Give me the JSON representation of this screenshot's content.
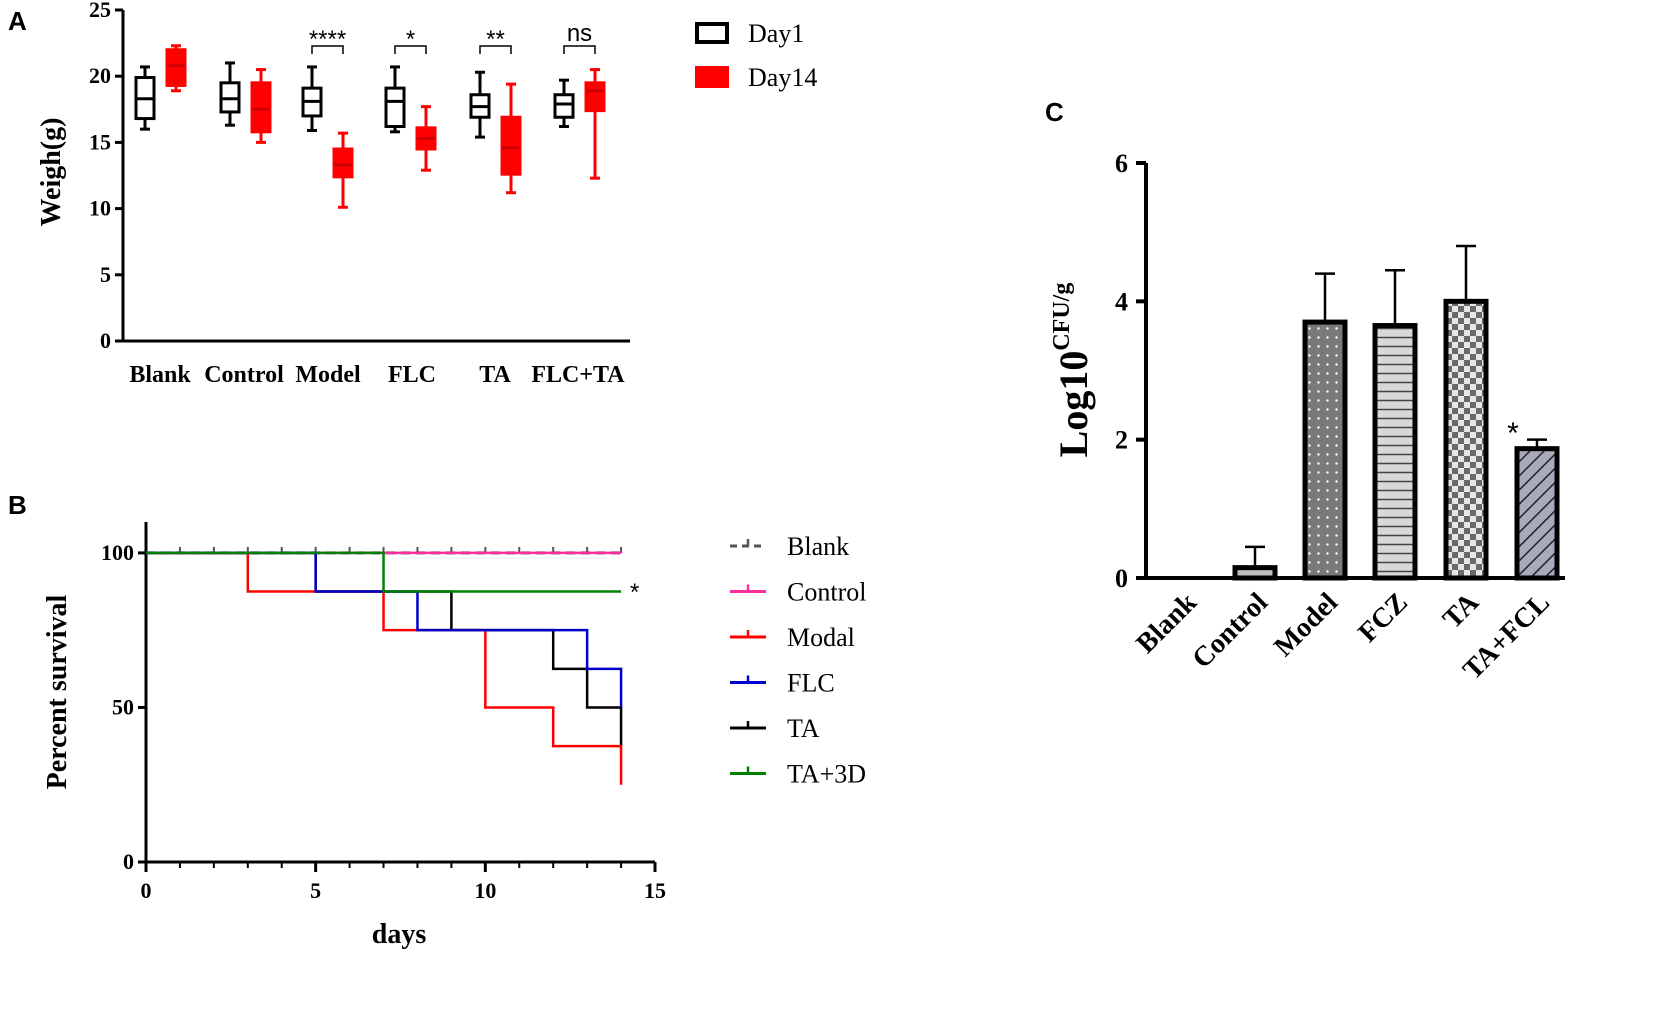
{
  "chart_data": [
    {
      "panel": "A",
      "type": "box",
      "ylabel": "Weigh(g)",
      "ylim": [
        0,
        25
      ],
      "yticks": [
        0,
        5,
        10,
        15,
        20,
        25
      ],
      "categories": [
        "Blank",
        "Control",
        "Model",
        "FLC",
        "TA",
        "FLC+TA"
      ],
      "legend": [
        {
          "name": "Day1",
          "color": "#000000",
          "style": "open"
        },
        {
          "name": "Day14",
          "color": "#ff0000",
          "style": "filled"
        }
      ],
      "series": [
        {
          "name": "Day1",
          "boxes": [
            {
              "min": 16.0,
              "q1": 16.8,
              "median": 18.3,
              "q3": 19.9,
              "max": 20.7
            },
            {
              "min": 16.3,
              "q1": 17.3,
              "median": 18.3,
              "q3": 19.5,
              "max": 21.0
            },
            {
              "min": 15.9,
              "q1": 17.0,
              "median": 18.1,
              "q3": 19.1,
              "max": 20.7
            },
            {
              "min": 15.8,
              "q1": 16.2,
              "median": 18.1,
              "q3": 19.1,
              "max": 20.7
            },
            {
              "min": 15.4,
              "q1": 16.9,
              "median": 17.7,
              "q3": 18.6,
              "max": 20.3
            },
            {
              "min": 16.2,
              "q1": 16.9,
              "median": 17.9,
              "q3": 18.6,
              "max": 19.7
            }
          ]
        },
        {
          "name": "Day14",
          "boxes": [
            {
              "min": 18.9,
              "q1": 19.3,
              "median": 20.8,
              "q3": 22.0,
              "max": 22.3
            },
            {
              "min": 15.0,
              "q1": 15.8,
              "median": 17.5,
              "q3": 19.5,
              "max": 20.5
            },
            {
              "min": 10.1,
              "q1": 12.4,
              "median": 13.3,
              "q3": 14.5,
              "max": 15.7
            },
            {
              "min": 12.9,
              "q1": 14.5,
              "median": 15.3,
              "q3": 16.1,
              "max": 17.7
            },
            {
              "min": 11.2,
              "q1": 12.6,
              "median": 14.6,
              "q3": 16.9,
              "max": 19.4
            },
            {
              "min": 12.3,
              "q1": 17.4,
              "median": 18.9,
              "q3": 19.5,
              "max": 20.5
            }
          ]
        }
      ],
      "significance": [
        "****",
        "*",
        "**",
        "ns"
      ],
      "significance_groups": [
        "Model",
        "FLC",
        "TA",
        "FLC+TA"
      ]
    },
    {
      "panel": "B",
      "type": "line",
      "subtype": "kaplan-meier",
      "xlabel": "days",
      "ylabel": "Percent survival",
      "xlim": [
        0,
        15
      ],
      "ylim": [
        0,
        110
      ],
      "xticks": [
        0,
        5,
        10,
        15
      ],
      "yticks": [
        0,
        50,
        100
      ],
      "series": [
        {
          "name": "Blank",
          "color": "#555555",
          "dashed": true,
          "points": [
            [
              0,
              100
            ],
            [
              14,
              100
            ]
          ]
        },
        {
          "name": "Control",
          "color": "#ff2aa0",
          "dashed": false,
          "points": [
            [
              0,
              100
            ],
            [
              14,
              100
            ]
          ]
        },
        {
          "name": "Modal",
          "color": "#ff0000",
          "dashed": false,
          "points": [
            [
              0,
              100
            ],
            [
              3,
              87.5
            ],
            [
              7,
              75
            ],
            [
              10,
              50
            ],
            [
              12,
              37.5
            ],
            [
              14,
              25
            ]
          ]
        },
        {
          "name": "FLC",
          "color": "#0000cc",
          "dashed": false,
          "points": [
            [
              0,
              100
            ],
            [
              5,
              87.5
            ],
            [
              8,
              75
            ],
            [
              13,
              62.5
            ],
            [
              14,
              50
            ]
          ]
        },
        {
          "name": "TA",
          "color": "#000000",
          "dashed": false,
          "points": [
            [
              0,
              100
            ],
            [
              5,
              87.5
            ],
            [
              9,
              75
            ],
            [
              12,
              62.5
            ],
            [
              13,
              50
            ],
            [
              14,
              37.5
            ]
          ]
        },
        {
          "name": "TA+3D",
          "color": "#008000",
          "dashed": false,
          "points": [
            [
              0,
              100
            ],
            [
              7,
              87.5
            ],
            [
              14,
              87.5
            ]
          ]
        }
      ],
      "annotation": "*"
    },
    {
      "panel": "C",
      "type": "bar",
      "ylabel_base": "Log10",
      "ylabel_sup": "CFU/g",
      "ylim": [
        0,
        6
      ],
      "yticks": [
        0,
        2,
        4,
        6
      ],
      "categories": [
        "Blank",
        "Control",
        "Model",
        "FCZ",
        "TA",
        "TA+FCL"
      ],
      "values": [
        0,
        0.15,
        3.7,
        3.65,
        4.0,
        1.87
      ],
      "errors": [
        0,
        0.3,
        0.7,
        0.8,
        0.8,
        0.13
      ],
      "patterns": [
        "none",
        "light",
        "dots",
        "hlines",
        "checker",
        "diag"
      ],
      "annotation": "*",
      "annotation_group": "TA+FCL"
    }
  ],
  "panel_labels": [
    "A",
    "B",
    "C"
  ]
}
